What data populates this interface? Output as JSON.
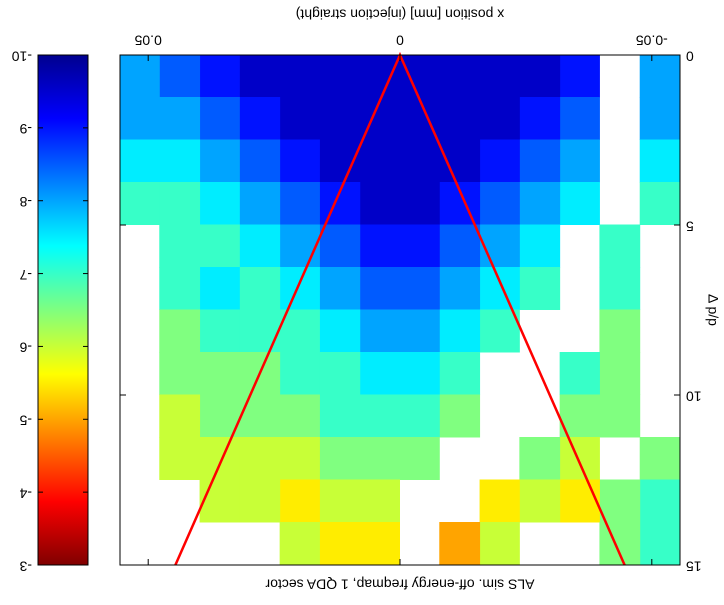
{
  "chart_data": {
    "type": "heatmap",
    "title": "ALS sim. off-energy freqmap, 1 QDA sector",
    "xlabel": "x position [mm] (injection straight)",
    "ylabel": "Δ p/p",
    "xlim": [
      -0.0556,
      0.0556
    ],
    "ylim": [
      0,
      15
    ],
    "xticks": [
      -0.05,
      0,
      0.05
    ],
    "yticks": [
      0,
      5,
      10,
      15
    ],
    "xbins": [
      -0.0556,
      -0.0477,
      -0.0397,
      -0.0318,
      -0.0238,
      -0.0159,
      -0.0079,
      0,
      0.0079,
      0.0159,
      0.0238,
      0.0318,
      0.0397,
      0.0477,
      0.0556
    ],
    "ybins": [
      0,
      1.25,
      2.5,
      3.75,
      5,
      6.25,
      7.5,
      8.75,
      10,
      11.25,
      12.5,
      13.75,
      15
    ],
    "z": [
      [
        -8,
        null,
        -9,
        -9.5,
        -9.5,
        -9.5,
        -9.5,
        -9.5,
        -9.5,
        -9.5,
        -9.5,
        -9,
        -8.5,
        -8
      ],
      [
        -8,
        null,
        -8.5,
        -9,
        -9.5,
        -9.5,
        -9.5,
        -9.5,
        -9.5,
        -9.5,
        -9,
        -8.5,
        -8,
        -8
      ],
      [
        -7.5,
        null,
        -8,
        -8.5,
        -9,
        -9.5,
        -9.5,
        -9.5,
        -9.5,
        -9,
        -8.5,
        -8,
        -7.5,
        -7.5
      ],
      [
        -7,
        null,
        -7.5,
        -8,
        -8.5,
        -9,
        -9.5,
        -9.5,
        -9,
        -8.5,
        -8,
        -7.5,
        -7,
        -7
      ],
      [
        null,
        -7,
        null,
        -7.5,
        -8,
        -8.5,
        -9,
        -9,
        -8.5,
        -8,
        -7.5,
        -7,
        -7,
        null
      ],
      [
        null,
        -7,
        null,
        -7,
        -7.5,
        -8,
        -8.5,
        -8.5,
        -8,
        -7.5,
        -7,
        -7.5,
        -7,
        null
      ],
      [
        null,
        -6.5,
        null,
        null,
        -7,
        -7.5,
        -8,
        -8,
        -7.5,
        -7,
        -7,
        -7,
        -6.5,
        null
      ],
      [
        null,
        -6.5,
        -7,
        null,
        null,
        -7,
        -7.5,
        -7.5,
        -7,
        -7,
        -6.5,
        -6.5,
        -6.5,
        null
      ],
      [
        null,
        -6.5,
        -6.5,
        null,
        null,
        -6.5,
        -7,
        -7,
        -7,
        -6.5,
        -6.5,
        -6.5,
        -6,
        null
      ],
      [
        -6.5,
        null,
        -6,
        -6.5,
        null,
        null,
        -6.5,
        -6.5,
        -6.5,
        -6,
        -6,
        -6,
        -6,
        null
      ],
      [
        -7,
        -6.5,
        -5.5,
        -6,
        -5.5,
        null,
        null,
        -6,
        -6,
        -5.5,
        -6,
        -6,
        null,
        null
      ],
      [
        -7,
        -6.5,
        null,
        null,
        -6,
        -5,
        null,
        -5.5,
        -5.5,
        -6,
        null,
        null,
        null,
        null
      ]
    ],
    "clim": [
      -10,
      -3
    ],
    "cticks": [
      -10,
      -9,
      -8,
      -7,
      -6,
      -5,
      -4,
      -3
    ],
    "colormap": "jet",
    "lines": [
      {
        "color": "#ff0000",
        "x": [
          -0.0446,
          0,
          0.0446
        ],
        "y": [
          15,
          0,
          15
        ]
      }
    ]
  }
}
